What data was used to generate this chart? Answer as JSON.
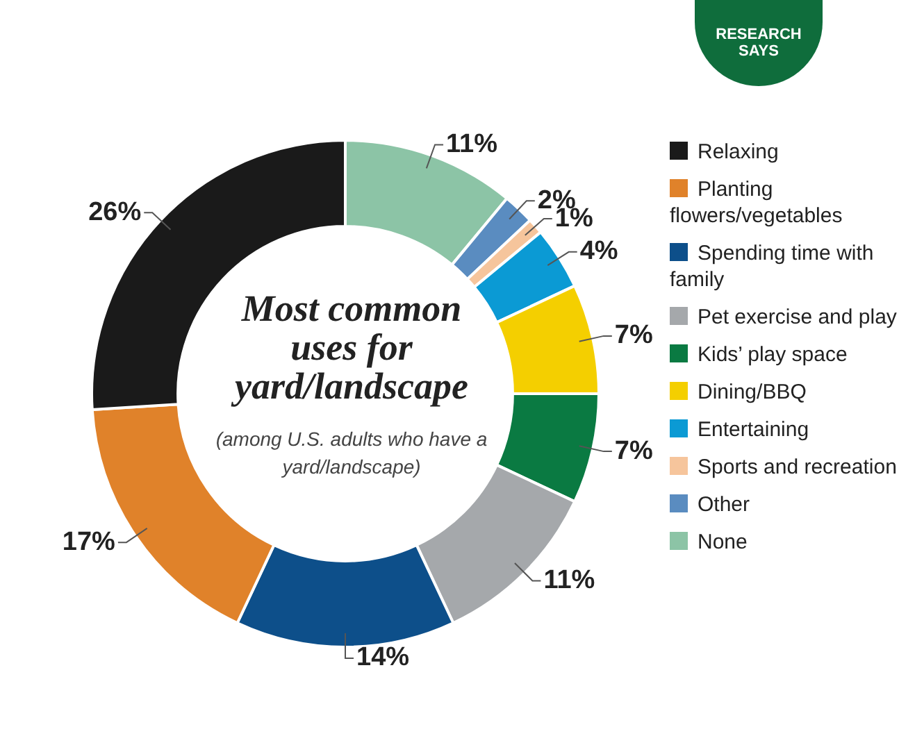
{
  "chart_data": {
    "type": "donut",
    "title": "Most common uses for yard/landscape",
    "subtitle": "(among U.S. adults who have a yard/landscape)",
    "annotations": [
      "RESEARCH SAYS"
    ],
    "categories": [
      "None",
      "Other",
      "Sports and recreation",
      "Entertaining",
      "Dining/BBQ",
      "Kids’ play space",
      "Pet exercise and play",
      "Spending time with family",
      "Planting flowers/vegetables",
      "Relaxing"
    ],
    "values": [
      11,
      2,
      1,
      4,
      7,
      7,
      11,
      14,
      17,
      26
    ],
    "colors": [
      "#8cc4a6",
      "#5a8cc0",
      "#f6c59c",
      "#0b9ad4",
      "#f4cf00",
      "#0a7a42",
      "#a5a8ab",
      "#0d4f8a",
      "#e0822a",
      "#1a1a1a"
    ],
    "value_labels": [
      "11%",
      "2%",
      "1%",
      "4%",
      "7%",
      "7%",
      "11%",
      "14%",
      "17%",
      "26%"
    ],
    "legend": "right"
  }
}
